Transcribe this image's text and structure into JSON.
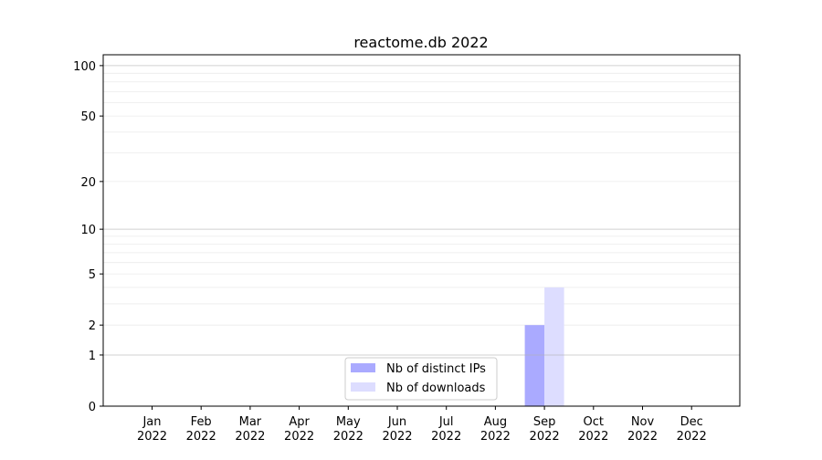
{
  "chart_data": {
    "type": "bar",
    "title": "reactome.db 2022",
    "xlabel": "",
    "ylabel": "",
    "y_scale": "symlog (log10(1+y))",
    "ylim": [
      0,
      116
    ],
    "y_ticks": [
      0,
      1,
      2,
      5,
      10,
      20,
      50,
      100
    ],
    "y_minor_grid": [
      3,
      4,
      6,
      7,
      8,
      9,
      30,
      40,
      60,
      70,
      80,
      90
    ],
    "grid": true,
    "legend_position": "bottom-center",
    "categories": [
      "Jan\n2022",
      "Feb\n2022",
      "Mar\n2022",
      "Apr\n2022",
      "May\n2022",
      "Jun\n2022",
      "Jul\n2022",
      "Aug\n2022",
      "Sep\n2022",
      "Oct\n2022",
      "Nov\n2022",
      "Dec\n2022"
    ],
    "series": [
      {
        "name": "Nb of distinct IPs",
        "color": "#aaaaff",
        "values": [
          0,
          0,
          0,
          0,
          0,
          0,
          0,
          0,
          2,
          0,
          0,
          0
        ]
      },
      {
        "name": "Nb of downloads",
        "color": "#ddddff",
        "values": [
          0,
          0,
          0,
          0,
          0,
          0,
          0,
          0,
          4,
          0,
          0,
          0
        ]
      }
    ]
  }
}
